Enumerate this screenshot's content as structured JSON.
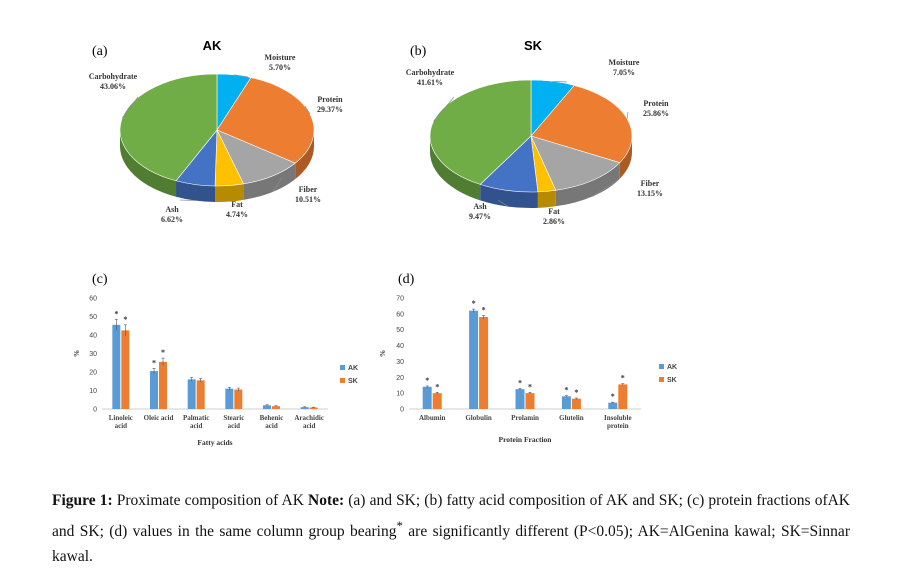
{
  "chart_data": [
    {
      "type": "pie",
      "panel": "(a)",
      "title": "AK",
      "slices": [
        {
          "label": "Moisture",
          "value": 5.7,
          "value_text": "5.70%",
          "color": "#00b0f0"
        },
        {
          "label": "Protein",
          "value": 29.37,
          "value_text": "29.37%",
          "color": "#ed7d31"
        },
        {
          "label": "Fiber",
          "value": 10.51,
          "value_text": "10.51%",
          "color": "#a5a5a5"
        },
        {
          "label": "Fat",
          "value": 4.74,
          "value_text": "4.74%",
          "color": "#ffc000"
        },
        {
          "label": "Ash",
          "value": 6.62,
          "value_text": "6.62%",
          "color": "#4472c4"
        },
        {
          "label": "Carbohydrate",
          "value": 43.06,
          "value_text": "43.06%",
          "color": "#70ad47"
        }
      ]
    },
    {
      "type": "pie",
      "panel": "(b)",
      "title": "SK",
      "slices": [
        {
          "label": "Moisture",
          "value": 7.05,
          "value_text": "7.05%",
          "color": "#00b0f0"
        },
        {
          "label": "Protein",
          "value": 25.86,
          "value_text": "25.86%",
          "color": "#ed7d31"
        },
        {
          "label": "Fiber",
          "value": 13.15,
          "value_text": "13.15%",
          "color": "#a5a5a5"
        },
        {
          "label": "Fat",
          "value": 2.86,
          "value_text": "2.86%",
          "color": "#ffc000"
        },
        {
          "label": "Ash",
          "value": 9.47,
          "value_text": "9.47%",
          "color": "#4472c4"
        },
        {
          "label": "Carbohydrate",
          "value": 41.61,
          "value_text": "41.61%",
          "color": "#70ad47"
        }
      ]
    },
    {
      "type": "bar",
      "panel": "(c)",
      "categories": [
        [
          "Linoleic",
          "acid"
        ],
        [
          "Oleic acid"
        ],
        [
          "Palmatic",
          "acid"
        ],
        [
          "Stearic",
          "acid"
        ],
        [
          "Behenic",
          "acid"
        ],
        [
          "Arachidic",
          "acid"
        ]
      ],
      "xlabel": "Fatty acids",
      "ylabel": "%",
      "ylim": [
        0,
        60
      ],
      "yticks": [
        0,
        10,
        20,
        30,
        40,
        50,
        60
      ],
      "series": [
        {
          "name": "AK",
          "color": "#5b9bd5",
          "values": [
            45.5,
            20.5,
            16,
            11,
            2,
            1
          ],
          "errors": [
            3,
            1.5,
            1,
            0.8,
            0.3,
            0.2
          ],
          "significant": [
            true,
            true,
            false,
            false,
            false,
            false
          ]
        },
        {
          "name": "SK",
          "color": "#ed7d31",
          "values": [
            42.5,
            25.5,
            15.5,
            10.5,
            1.5,
            0.8
          ],
          "errors": [
            3,
            2,
            1,
            0.8,
            0.3,
            0.2
          ],
          "significant": [
            true,
            true,
            false,
            false,
            false,
            false
          ]
        }
      ],
      "significance_mark": "*"
    },
    {
      "type": "bar",
      "panel": "(d)",
      "categories": [
        [
          "Albumin"
        ],
        [
          "Globulin"
        ],
        [
          "Prolamin"
        ],
        [
          "Glutelin"
        ],
        [
          "Insoluble",
          "protein"
        ]
      ],
      "xlabel": "Protein Fraction",
      "ylabel": "%",
      "ylim": [
        0,
        70
      ],
      "yticks": [
        0,
        10,
        20,
        30,
        40,
        50,
        60,
        70
      ],
      "series": [
        {
          "name": "AK",
          "color": "#5b9bd5",
          "values": [
            14,
            62,
            12.5,
            8,
            4
          ],
          "errors": [
            0.5,
            1,
            0.5,
            0.4,
            0.3
          ],
          "significant": [
            true,
            true,
            true,
            true,
            true
          ]
        },
        {
          "name": "SK",
          "color": "#ed7d31",
          "values": [
            10,
            58,
            10,
            6.5,
            15.5
          ],
          "errors": [
            0.5,
            1,
            0.5,
            0.4,
            0.5
          ],
          "significant": [
            true,
            true,
            true,
            true,
            true
          ]
        }
      ],
      "significance_mark": "*"
    }
  ],
  "caption": {
    "label": "Figure 1:",
    "text_1": " Proximate composition of AK ",
    "note": "Note:",
    "text_2": " (a) and SK; (b) fatty acid composition of AK and SK; (c) protein fractions ofAK and SK; (d) values in the same column group bearing",
    "superscript": "*",
    "text_3": " are significantly different (P<0.05); AK=AlGenina kawal; SK=Sinnar kawal."
  }
}
